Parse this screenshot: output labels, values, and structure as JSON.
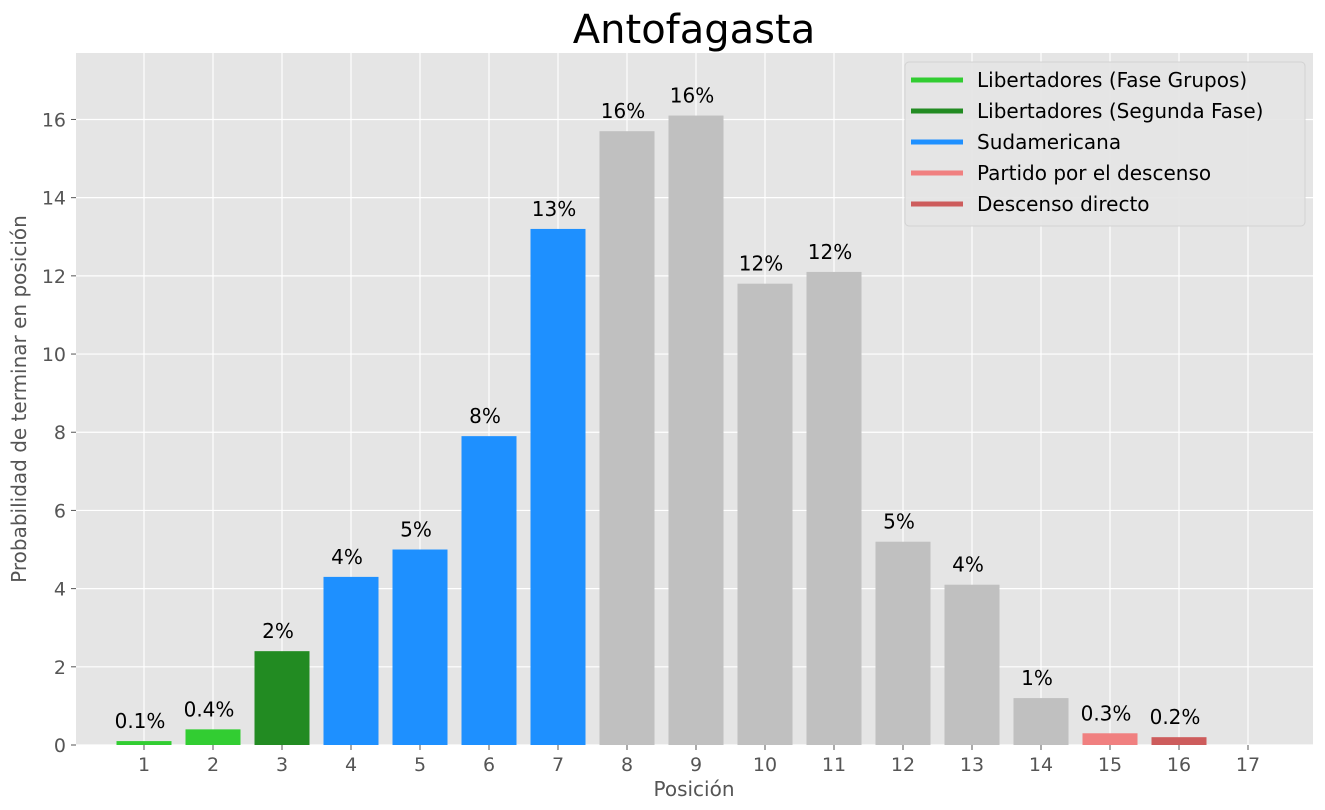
{
  "chart_data": {
    "type": "bar",
    "title": "Antofagasta",
    "xlabel": "Posición",
    "ylabel": "Probabilidad de terminar en posición",
    "categories": [
      "1",
      "2",
      "3",
      "4",
      "5",
      "6",
      "7",
      "8",
      "9",
      "10",
      "11",
      "12",
      "13",
      "14",
      "15",
      "16",
      "17"
    ],
    "values": [
      0.1,
      0.4,
      2.4,
      4.3,
      5.0,
      7.9,
      13.2,
      15.7,
      16.1,
      11.8,
      12.1,
      5.2,
      4.1,
      1.2,
      0.3,
      0.2,
      0.0
    ],
    "bar_labels": [
      "0.1%",
      "0.4%",
      "2%",
      "4%",
      "5%",
      "8%",
      "13%",
      "16%",
      "16%",
      "12%",
      "12%",
      "5%",
      "4%",
      "1%",
      "0.3%",
      "0.2%",
      ""
    ],
    "bar_colors": [
      "#32cd32",
      "#32cd32",
      "#228b22",
      "#1e90ff",
      "#1e90ff",
      "#1e90ff",
      "#1e90ff",
      "#c0c0c0",
      "#c0c0c0",
      "#c0c0c0",
      "#c0c0c0",
      "#c0c0c0",
      "#c0c0c0",
      "#c0c0c0",
      "#f08080",
      "#cd5c5c",
      "#c0c0c0"
    ],
    "ylim": [
      0,
      17.7
    ],
    "yticks": [
      0,
      2,
      4,
      6,
      8,
      10,
      12,
      14,
      16
    ],
    "grid": true,
    "legend_position": "top-right",
    "legend": [
      {
        "label": "Libertadores (Fase Grupos)",
        "color": "#32cd32"
      },
      {
        "label": "Libertadores (Segunda Fase)",
        "color": "#228b22"
      },
      {
        "label": "Sudamericana",
        "color": "#1e90ff"
      },
      {
        "label": "Partido por el descenso",
        "color": "#f08080"
      },
      {
        "label": "Descenso directo",
        "color": "#cd5c5c"
      }
    ],
    "background_color": "#e5e5e5",
    "grid_color": "#ffffff"
  }
}
